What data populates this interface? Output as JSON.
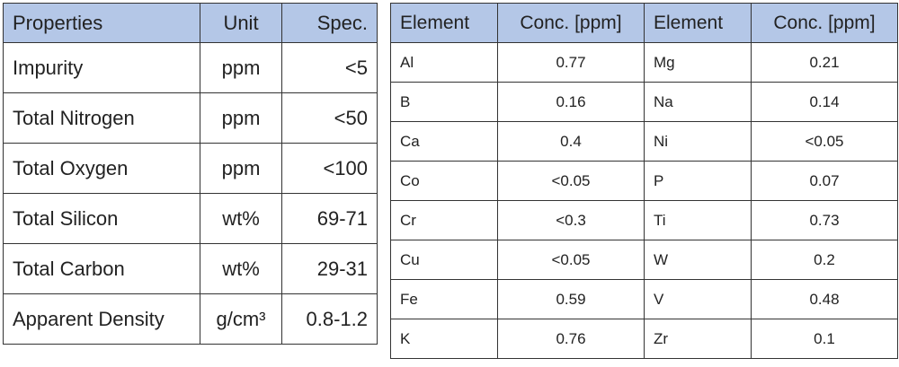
{
  "properties_table": {
    "header": [
      "Properties",
      "Unit",
      "Spec."
    ],
    "rows": [
      [
        "Impurity",
        "ppm",
        "<5"
      ],
      [
        "Total Nitrogen",
        "ppm",
        "<50"
      ],
      [
        "Total Oxygen",
        "ppm",
        "<100"
      ],
      [
        "Total Silicon",
        "wt%",
        "69-71"
      ],
      [
        "Total Carbon",
        "wt%",
        "29-31"
      ],
      [
        "Apparent Density",
        "g/cm³",
        "0.8-1.2"
      ]
    ]
  },
  "element_table": {
    "header": [
      "Element",
      "Conc. [ppm]",
      "Element",
      "Conc. [ppm]"
    ],
    "rows": [
      [
        "Al",
        "0.77",
        "Mg",
        "0.21"
      ],
      [
        "B",
        "0.16",
        "Na",
        "0.14"
      ],
      [
        "Ca",
        "0.4",
        "Ni",
        "<0.05"
      ],
      [
        "Co",
        "<0.05",
        "P",
        "0.07"
      ],
      [
        "Cr",
        "<0.3",
        "Ti",
        "0.73"
      ],
      [
        "Cu",
        "<0.05",
        "W",
        "0.2"
      ],
      [
        "Fe",
        "0.59",
        "V",
        "0.48"
      ],
      [
        "K",
        "0.76",
        "Zr",
        "0.1"
      ]
    ]
  }
}
